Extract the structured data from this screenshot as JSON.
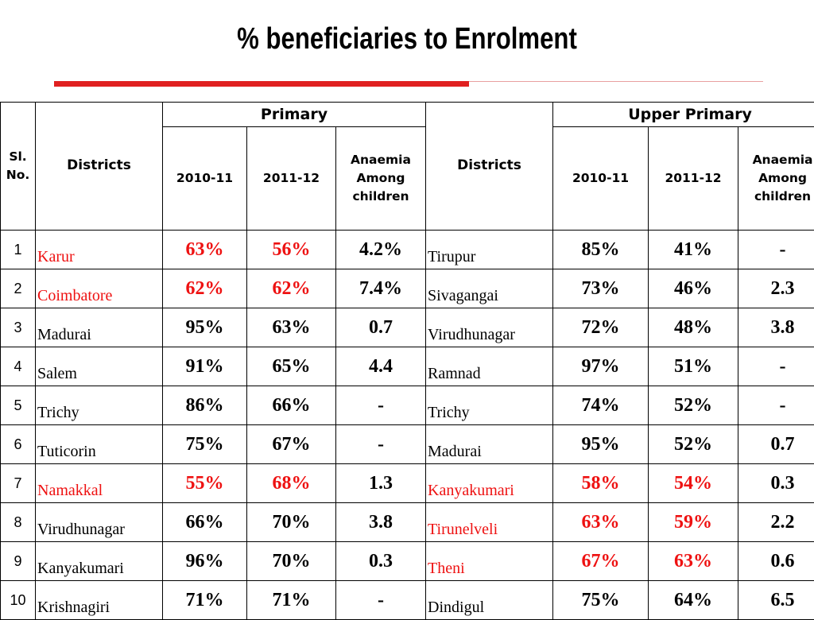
{
  "title": "% beneficiaries to Enrolment",
  "headers": {
    "sl_no": "Sl. No.",
    "districts": "Districts",
    "primary": "Primary",
    "upper_primary": "Upper Primary",
    "year1": "2010-11",
    "year2": "2011-12",
    "anaemia": "Anaemia Among children"
  },
  "colors": {
    "highlight": "#ee1111",
    "accent_bar": "#e02020"
  },
  "rows": [
    {
      "sl": "1",
      "p_district": "Karur",
      "p_red": true,
      "p_2010": "63%",
      "p_2011": "56%",
      "p_anaemia": "4.2%",
      "u_district": "Tirupur",
      "u_red": false,
      "u_2010": "85%",
      "u_2011": "41%",
      "u_anaemia": "-"
    },
    {
      "sl": "2",
      "p_district": "Coimbatore",
      "p_red": true,
      "p_2010": "62%",
      "p_2011": "62%",
      "p_anaemia": "7.4%",
      "u_district": "Sivagangai",
      "u_red": false,
      "u_2010": "73%",
      "u_2011": "46%",
      "u_anaemia": "2.3"
    },
    {
      "sl": "3",
      "p_district": "Madurai",
      "p_red": false,
      "p_2010": "95%",
      "p_2011": "63%",
      "p_anaemia": "0.7",
      "u_district": "Virudhunagar",
      "u_red": false,
      "u_2010": "72%",
      "u_2011": "48%",
      "u_anaemia": "3.8"
    },
    {
      "sl": "4",
      "p_district": "Salem",
      "p_red": false,
      "p_2010": "91%",
      "p_2011": "65%",
      "p_anaemia": "4.4",
      "u_district": "Ramnad",
      "u_red": false,
      "u_2010": "97%",
      "u_2011": "51%",
      "u_anaemia": "-"
    },
    {
      "sl": "5",
      "p_district": "Trichy",
      "p_red": false,
      "p_2010": "86%",
      "p_2011": "66%",
      "p_anaemia": "-",
      "u_district": "Trichy",
      "u_red": false,
      "u_2010": "74%",
      "u_2011": "52%",
      "u_anaemia": "-"
    },
    {
      "sl": "6",
      "p_district": "Tuticorin",
      "p_red": false,
      "p_2010": "75%",
      "p_2011": "67%",
      "p_anaemia": "-",
      "u_district": "Madurai",
      "u_red": false,
      "u_2010": "95%",
      "u_2011": "52%",
      "u_anaemia": "0.7"
    },
    {
      "sl": "7",
      "p_district": "Namakkal",
      "p_red": true,
      "p_2010": "55%",
      "p_2011": "68%",
      "p_anaemia": "1.3",
      "u_district": "Kanyakumari",
      "u_red": true,
      "u_2010": "58%",
      "u_2011": "54%",
      "u_anaemia": "0.3"
    },
    {
      "sl": "8",
      "p_district": "Virudhunagar",
      "p_red": false,
      "p_2010": "66%",
      "p_2011": "70%",
      "p_anaemia": "3.8",
      "u_district": "Tirunelveli",
      "u_red": true,
      "u_2010": "63%",
      "u_2011": "59%",
      "u_anaemia": "2.2"
    },
    {
      "sl": "9",
      "p_district": "Kanyakumari",
      "p_red": false,
      "p_2010": "96%",
      "p_2011": "70%",
      "p_anaemia": "0.3",
      "u_district": "Theni",
      "u_red": true,
      "u_2010": "67%",
      "u_2011": "63%",
      "u_anaemia": "0.6"
    },
    {
      "sl": "10",
      "p_district": "Krishnagiri",
      "p_red": false,
      "p_2010": "71%",
      "p_2011": "71%",
      "p_anaemia": "-",
      "u_district": "Dindigul",
      "u_red": false,
      "u_2010": "75%",
      "u_2011": "64%",
      "u_anaemia": "6.5"
    }
  ]
}
